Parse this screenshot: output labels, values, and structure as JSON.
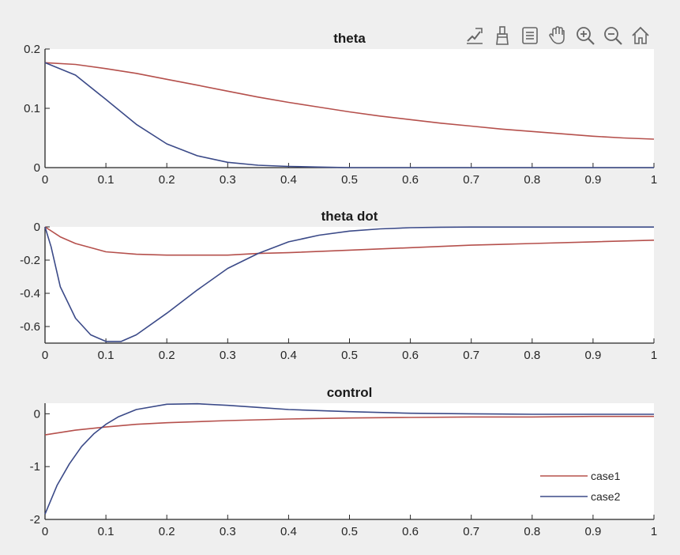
{
  "toolbar": {
    "buttons": [
      {
        "icon": "data-tips-icon"
      },
      {
        "icon": "brush-icon"
      },
      {
        "icon": "legend-icon"
      },
      {
        "icon": "pan-hand-icon"
      },
      {
        "icon": "zoom-in-icon"
      },
      {
        "icon": "zoom-out-icon"
      },
      {
        "icon": "home-icon"
      }
    ]
  },
  "colors": {
    "case1": "#b5504c",
    "case2": "#3b4a88",
    "background": "#efefef",
    "axes": "#ffffff"
  },
  "chart_data": [
    {
      "type": "line",
      "title": "theta",
      "xlim": [
        0,
        1
      ],
      "ylim": [
        0,
        0.2
      ],
      "xticks": [
        "0",
        "0.1",
        "0.2",
        "0.3",
        "0.4",
        "0.5",
        "0.6",
        "0.7",
        "0.8",
        "0.9",
        "1"
      ],
      "yticks": [
        "0",
        "0.1",
        "0.2"
      ],
      "ytick_values": [
        0,
        0.1,
        0.2
      ],
      "series": [
        {
          "name": "case1",
          "x": [
            0,
            0.05,
            0.1,
            0.15,
            0.2,
            0.25,
            0.3,
            0.35,
            0.4,
            0.45,
            0.5,
            0.55,
            0.6,
            0.65,
            0.7,
            0.75,
            0.8,
            0.85,
            0.9,
            0.95,
            1.0
          ],
          "values": [
            0.177,
            0.174,
            0.167,
            0.159,
            0.149,
            0.139,
            0.129,
            0.119,
            0.11,
            0.102,
            0.094,
            0.087,
            0.081,
            0.075,
            0.07,
            0.065,
            0.061,
            0.057,
            0.053,
            0.05,
            0.048
          ]
        },
        {
          "name": "case2",
          "x": [
            0,
            0.05,
            0.1,
            0.15,
            0.2,
            0.25,
            0.3,
            0.35,
            0.4,
            0.45,
            0.5,
            0.55,
            0.6,
            0.65,
            0.7,
            0.75,
            0.8,
            0.85,
            0.9,
            0.95,
            1.0
          ],
          "values": [
            0.177,
            0.156,
            0.115,
            0.073,
            0.04,
            0.02,
            0.009,
            0.004,
            0.002,
            0.001,
            0.0,
            0.0,
            0.0,
            0.0,
            0.0,
            0.0,
            0.0,
            0.0,
            0.0,
            0.0,
            0.0
          ]
        }
      ]
    },
    {
      "type": "line",
      "title": "theta dot",
      "xlim": [
        0,
        1
      ],
      "ylim": [
        -0.7,
        0
      ],
      "xticks": [
        "0",
        "0.1",
        "0.2",
        "0.3",
        "0.4",
        "0.5",
        "0.6",
        "0.7",
        "0.8",
        "0.9",
        "1"
      ],
      "yticks": [
        "0",
        "-0.2",
        "-0.4",
        "-0.6"
      ],
      "ytick_values": [
        0,
        -0.2,
        -0.4,
        -0.6
      ],
      "series": [
        {
          "name": "case1",
          "x": [
            0,
            0.025,
            0.05,
            0.1,
            0.15,
            0.2,
            0.25,
            0.3,
            0.35,
            0.4,
            0.5,
            0.6,
            0.7,
            0.8,
            0.9,
            1.0
          ],
          "values": [
            0,
            -0.06,
            -0.1,
            -0.15,
            -0.165,
            -0.17,
            -0.17,
            -0.17,
            -0.16,
            -0.155,
            -0.14,
            -0.125,
            -0.11,
            -0.1,
            -0.09,
            -0.08
          ]
        },
        {
          "name": "case2",
          "x": [
            0,
            0.01,
            0.025,
            0.05,
            0.075,
            0.1,
            0.125,
            0.15,
            0.2,
            0.25,
            0.3,
            0.35,
            0.4,
            0.45,
            0.5,
            0.55,
            0.6,
            0.65,
            0.7,
            0.8,
            0.9,
            1.0
          ],
          "values": [
            0,
            -0.12,
            -0.36,
            -0.55,
            -0.65,
            -0.69,
            -0.69,
            -0.65,
            -0.52,
            -0.38,
            -0.25,
            -0.16,
            -0.09,
            -0.05,
            -0.025,
            -0.012,
            -0.005,
            -0.002,
            -0.001,
            -0.001,
            -0.001,
            -0.001
          ]
        }
      ]
    },
    {
      "type": "line",
      "title": "control",
      "xlim": [
        0,
        1
      ],
      "ylim": [
        -2,
        0.2
      ],
      "xticks": [
        "0",
        "0.1",
        "0.2",
        "0.3",
        "0.4",
        "0.5",
        "0.6",
        "0.7",
        "0.8",
        "0.9",
        "1"
      ],
      "yticks": [
        "0",
        "-1",
        "-2"
      ],
      "ytick_values": [
        0,
        -1,
        -2
      ],
      "legend": {
        "position": "bottom-right",
        "entries": [
          "case1",
          "case2"
        ]
      },
      "series": [
        {
          "name": "case1",
          "x": [
            0,
            0.05,
            0.1,
            0.15,
            0.2,
            0.3,
            0.4,
            0.5,
            0.6,
            0.7,
            0.8,
            0.9,
            1.0
          ],
          "values": [
            -0.4,
            -0.31,
            -0.25,
            -0.2,
            -0.17,
            -0.13,
            -0.1,
            -0.08,
            -0.07,
            -0.06,
            -0.06,
            -0.05,
            -0.05
          ]
        },
        {
          "name": "case2",
          "x": [
            0,
            0.02,
            0.04,
            0.06,
            0.08,
            0.1,
            0.12,
            0.15,
            0.2,
            0.25,
            0.3,
            0.35,
            0.4,
            0.5,
            0.6,
            0.7,
            0.8,
            0.9,
            1.0
          ],
          "values": [
            -1.9,
            -1.35,
            -0.95,
            -0.62,
            -0.38,
            -0.2,
            -0.06,
            0.08,
            0.18,
            0.19,
            0.16,
            0.12,
            0.08,
            0.04,
            0.01,
            0.0,
            -0.01,
            -0.01,
            -0.01
          ]
        }
      ]
    }
  ]
}
